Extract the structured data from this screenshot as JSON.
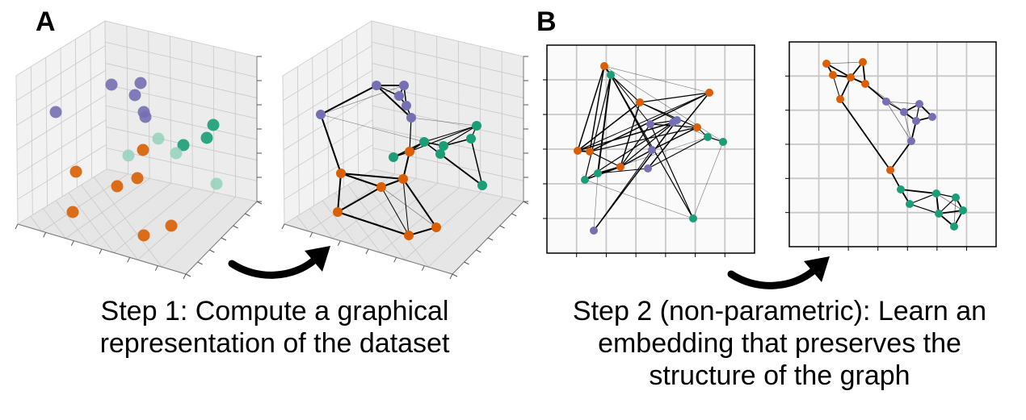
{
  "panel_a": {
    "letter": "A",
    "caption_lines": [
      "Step 1: Compute a graphical",
      "representation of the dataset"
    ]
  },
  "panel_b": {
    "letter": "B",
    "caption_lines": [
      "Step 2 (non-parametric): Learn an",
      "embedding that preserves the",
      "structure of the graph"
    ]
  },
  "colors": {
    "orange": "#d95f02",
    "green": "#1b9e77",
    "purple": "#7570b3",
    "light_green": "#8fd1b8",
    "edge": "#000000",
    "axes_pane": "#f2f2f2",
    "grid": "#c8c8c8",
    "plot_bg": "#fafafa",
    "arrow": "#000000"
  },
  "icons": [
    "curved-arrow-icon",
    "curved-arrow-icon"
  ]
}
